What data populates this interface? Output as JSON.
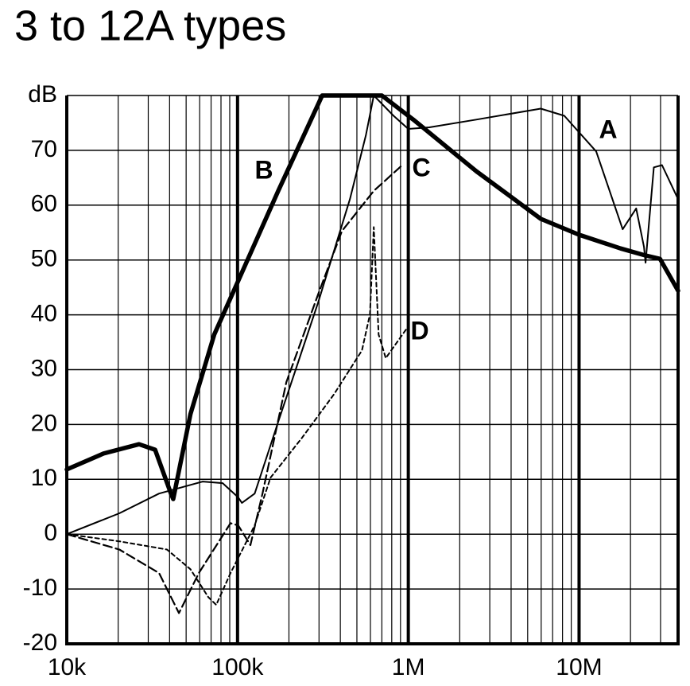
{
  "chart_data": {
    "type": "line",
    "title": "3 to 12A types",
    "xscale": "log",
    "grid": true,
    "xlim": [
      10000,
      38000000
    ],
    "ylim": [
      -20,
      80
    ],
    "xticks": [
      {
        "value": 10000,
        "label": "10k"
      },
      {
        "value": 100000,
        "label": "100k"
      },
      {
        "value": 1000000,
        "label": "1M"
      },
      {
        "value": 10000000,
        "label": "10M"
      }
    ],
    "x_minor_ticks": [
      20000,
      30000,
      40000,
      50000,
      60000,
      70000,
      80000,
      90000,
      200000,
      300000,
      400000,
      500000,
      600000,
      700000,
      800000,
      900000,
      2000000,
      3000000,
      4000000,
      5000000,
      6000000,
      7000000,
      8000000,
      9000000,
      20000000,
      30000000
    ],
    "yticks": [
      -20,
      -10,
      0,
      10,
      20,
      30,
      40,
      50,
      60,
      70,
      {
        "value": 80,
        "label": "dB"
      }
    ],
    "series": [
      {
        "name": "A",
        "color": "#000000",
        "style": "solid",
        "x": [
          10000,
          20300,
          34700,
          62600,
          81800,
          101000,
          106000,
          126000,
          173000,
          296000,
          455000,
          564000,
          628000,
          820000,
          1000000,
          1330000,
          2500000,
          5970000,
          8200000,
          12600000,
          18000000,
          21600000,
          24000000,
          24500000,
          27400000,
          30600000,
          38000000
        ],
        "values": [
          0,
          3.8,
          7.4,
          9.6,
          9.3,
          6.7,
          5.7,
          7.4,
          20.5,
          42.2,
          61.1,
          72.7,
          80,
          76.3,
          73.9,
          74.2,
          75.6,
          77.6,
          76.3,
          69.8,
          55.6,
          59.4,
          52.4,
          49.5,
          66.9,
          67.3,
          61.1
        ]
      },
      {
        "name": "B",
        "color": "#000000",
        "style": "bold",
        "x": [
          10000,
          16400,
          26500,
          32900,
          40700,
          42000,
          53000,
          73000,
          100000,
          173000,
          313000,
          700000,
          1070000,
          2500000,
          5970000,
          10000000,
          17500000,
          24000000,
          29800000,
          38000000
        ],
        "values": [
          11.8,
          14.7,
          16.4,
          15.4,
          7.4,
          6.4,
          21.9,
          36.4,
          45.9,
          62.6,
          80,
          80,
          75.6,
          66.2,
          57.5,
          54.6,
          52.1,
          50.9,
          50.2,
          44.4
        ]
      },
      {
        "name": "C",
        "color": "#000000",
        "style": "dashed",
        "x": [
          10000,
          20300,
          34700,
          45400,
          59300,
          91000,
          101000,
          119000,
          140000,
          193000,
          296000,
          409000,
          628000,
          914000
        ],
        "values": [
          0,
          -2.8,
          -7.1,
          -14.4,
          -7.1,
          2.0,
          1.6,
          -2,
          7.4,
          27.7,
          43.7,
          55.3,
          62.6,
          67.2
        ]
      },
      {
        "name": "D",
        "color": "#000000",
        "style": "dotted",
        "x": [
          10000,
          20300,
          38600,
          53000,
          67500,
          75000,
          91000,
          126000,
          156000,
          239000,
          367000,
          535000,
          596000,
          628000,
          670000,
          738000,
          1000000
        ],
        "values": [
          0,
          -1.3,
          -2.8,
          -6.4,
          -11.5,
          -12.9,
          -7.1,
          1.6,
          10.3,
          17.6,
          25.5,
          33.5,
          40.1,
          56,
          36.4,
          32.1,
          37.9
        ]
      }
    ]
  }
}
